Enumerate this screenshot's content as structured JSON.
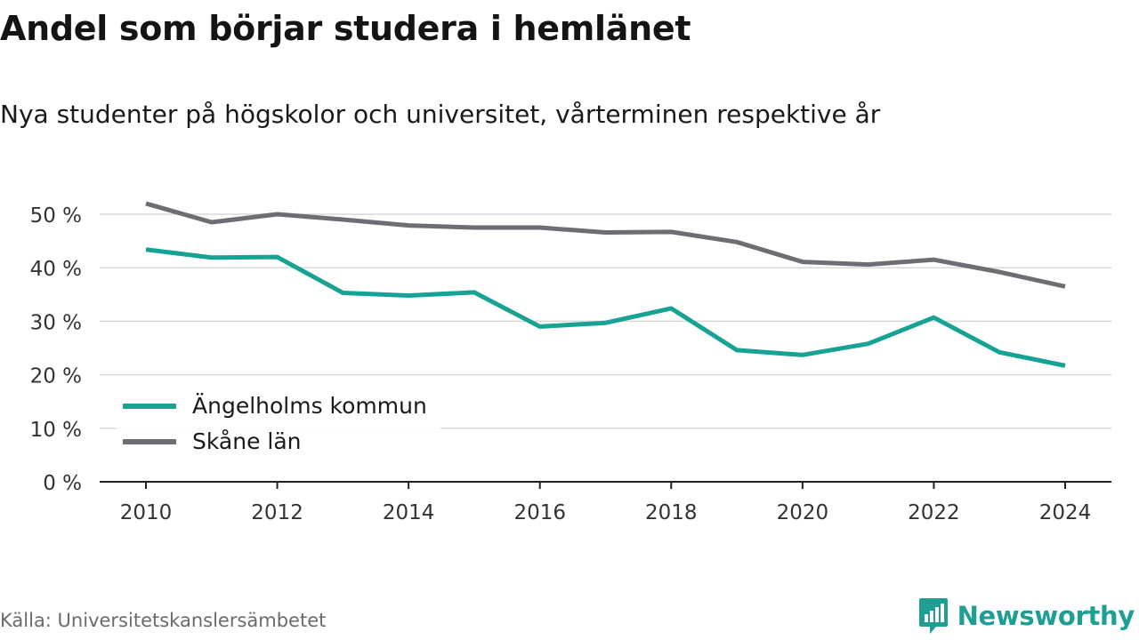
{
  "title": "Andel som börjar studera i hemlänet",
  "subtitle": "Nya studenter på högskolor och universitet, vårterminen respektive år",
  "source": "Källa: Universitetskanslersämbetet",
  "brand": {
    "name": "Newsworthy",
    "icon": "newsworthy-logo-icon",
    "color": "#1f9e94"
  },
  "chart_data": {
    "type": "line",
    "x": [
      2010,
      2011,
      2012,
      2013,
      2014,
      2015,
      2016,
      2017,
      2018,
      2019,
      2020,
      2021,
      2022,
      2023,
      2024
    ],
    "xticks": [
      "2010",
      "2012",
      "2014",
      "2016",
      "2018",
      "2020",
      "2022",
      "2024"
    ],
    "xtick_values": [
      2010,
      2012,
      2014,
      2016,
      2018,
      2020,
      2022,
      2024
    ],
    "yticks": [
      "0 %",
      "10 %",
      "20 %",
      "30 %",
      "40 %",
      "50 %"
    ],
    "ytick_values": [
      0,
      10,
      20,
      30,
      40,
      50
    ],
    "ylim": [
      0,
      52
    ],
    "grid": true,
    "legend_position": "bottom-left",
    "series": [
      {
        "name": "Ängelholms kommun",
        "color": "#16a394",
        "values": [
          43.4,
          41.9,
          42.0,
          35.3,
          34.8,
          35.4,
          29.0,
          29.7,
          32.4,
          24.6,
          23.7,
          25.8,
          30.7,
          24.2,
          21.7
        ]
      },
      {
        "name": "Skåne län",
        "color": "#6e6d74",
        "values": [
          52.0,
          48.5,
          50.0,
          49.0,
          47.9,
          47.5,
          47.5,
          46.6,
          46.7,
          44.8,
          41.1,
          40.6,
          41.5,
          39.2,
          36.5
        ]
      }
    ]
  }
}
